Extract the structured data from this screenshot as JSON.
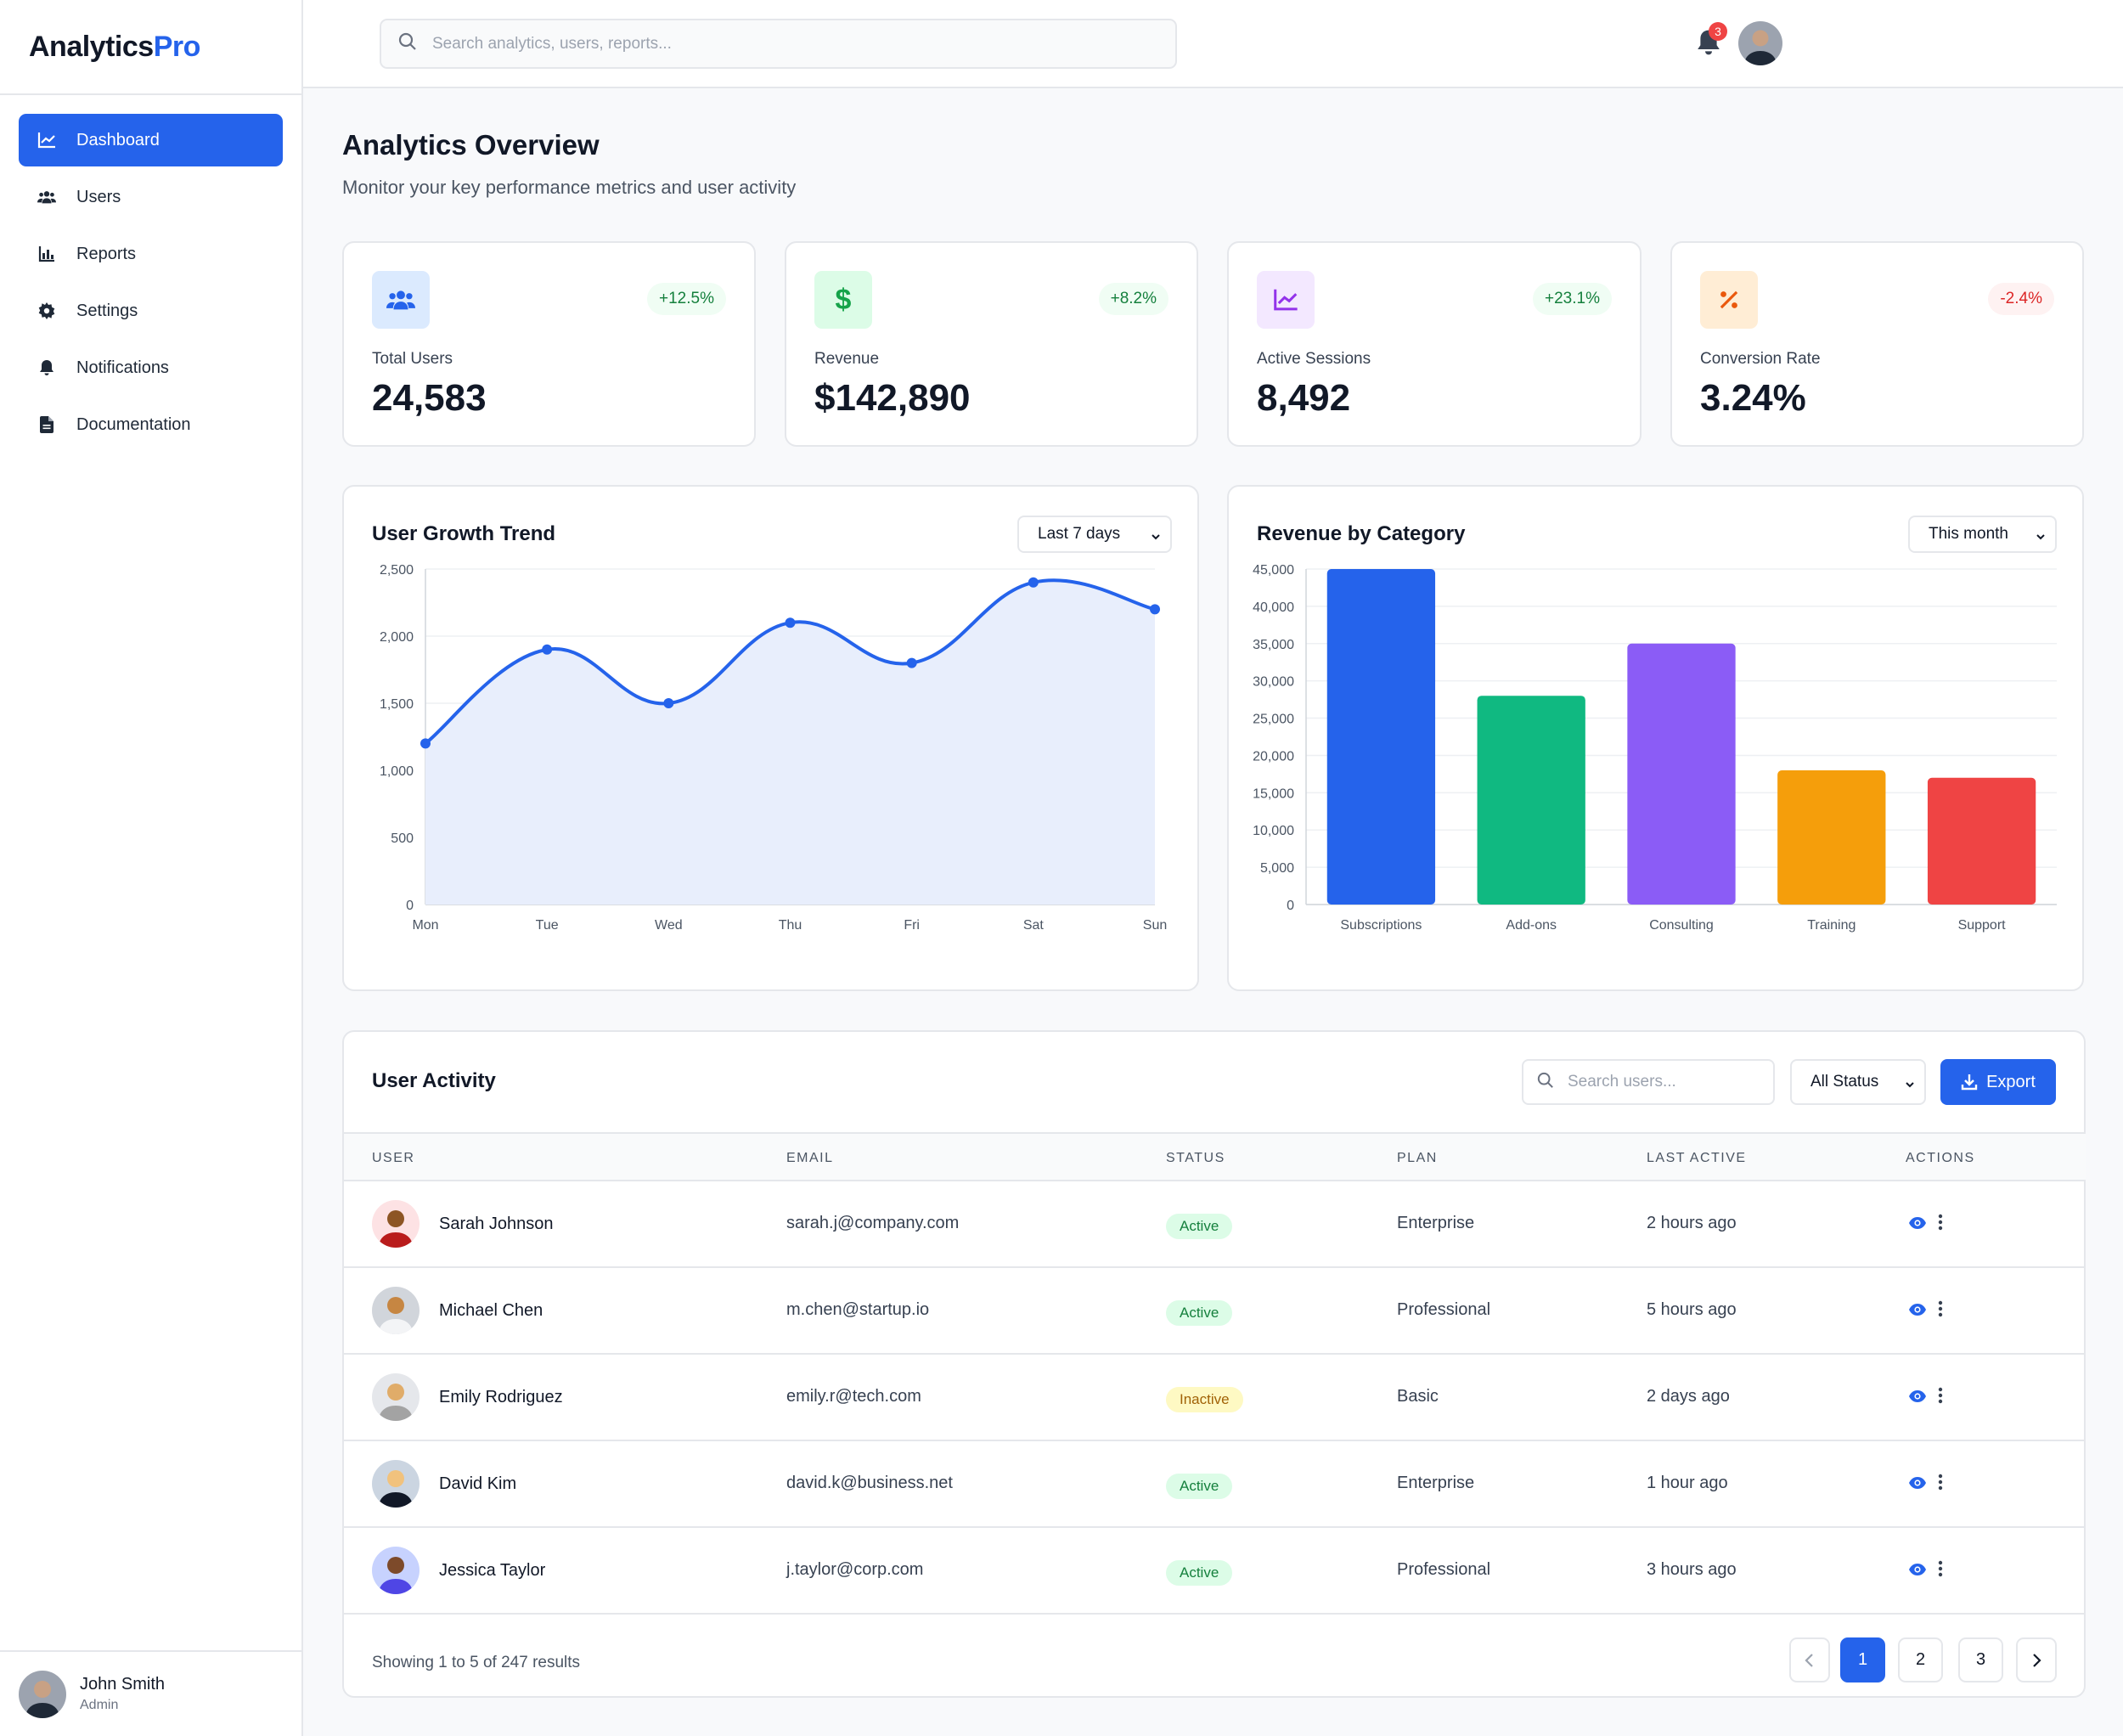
{
  "app": {
    "name_main": "Analytics",
    "name_accent": "Pro"
  },
  "search": {
    "placeholder": "Search analytics, users, reports..."
  },
  "notifications": {
    "count": "3"
  },
  "sidebar": {
    "items": [
      {
        "label": "Dashboard",
        "icon": "chart-line-icon",
        "active": true
      },
      {
        "label": "Users",
        "icon": "users-icon"
      },
      {
        "label": "Reports",
        "icon": "bar-chart-icon"
      },
      {
        "label": "Settings",
        "icon": "gear-icon"
      },
      {
        "label": "Notifications",
        "icon": "bell-icon"
      },
      {
        "label": "Documentation",
        "icon": "document-icon"
      }
    ],
    "user": {
      "name": "John Smith",
      "role": "Admin"
    }
  },
  "page": {
    "title": "Analytics Overview",
    "subtitle": "Monitor your key performance metrics and user activity"
  },
  "stats": [
    {
      "label": "Total Users",
      "value": "24,583",
      "change": "+12.5%",
      "trend": "up",
      "icon": "users-icon",
      "icon_color": "#2563eb",
      "icon_bg": "#dbeafe"
    },
    {
      "label": "Revenue",
      "value": "$142,890",
      "change": "+8.2%",
      "trend": "up",
      "icon": "dollar-icon",
      "icon_color": "#16a34a",
      "icon_bg": "#dcfce7"
    },
    {
      "label": "Active Sessions",
      "value": "8,492",
      "change": "+23.1%",
      "trend": "up",
      "icon": "chart-line-icon",
      "icon_color": "#9333ea",
      "icon_bg": "#f3e8ff"
    },
    {
      "label": "Conversion Rate",
      "value": "3.24%",
      "change": "-2.4%",
      "trend": "down",
      "icon": "percent-icon",
      "icon_color": "#ea580c",
      "icon_bg": "#ffedd5"
    }
  ],
  "chart_data": [
    {
      "type": "area",
      "title": "User Growth Trend",
      "filter": "Last 7 days",
      "x": [
        "Mon",
        "Tue",
        "Wed",
        "Thu",
        "Fri",
        "Sat",
        "Sun"
      ],
      "series": [
        {
          "values": [
            1200,
            1900,
            1500,
            2100,
            1800,
            2400,
            2200
          ],
          "color": "#2563eb"
        }
      ],
      "ylim": [
        0,
        2500
      ],
      "yticks": [
        0,
        500,
        1000,
        1500,
        2000,
        2500
      ],
      "ytick_labels": [
        "0",
        "500",
        "1,000",
        "1,500",
        "2,000",
        "2,500"
      ],
      "grid": true
    },
    {
      "type": "bar",
      "title": "Revenue by Category",
      "filter": "This month",
      "categories": [
        "Subscriptions",
        "Add-ons",
        "Consulting",
        "Training",
        "Support"
      ],
      "values": [
        45000,
        28000,
        35000,
        18000,
        17000
      ],
      "colors": [
        "#2563eb",
        "#10b981",
        "#8b5cf6",
        "#f59e0b",
        "#ef4444"
      ],
      "ylim": [
        0,
        45000
      ],
      "yticks": [
        0,
        5000,
        10000,
        15000,
        20000,
        25000,
        30000,
        35000,
        40000,
        45000
      ],
      "ytick_labels": [
        "0",
        "5,000",
        "10,000",
        "15,000",
        "20,000",
        "25,000",
        "30,000",
        "35,000",
        "40,000",
        "45,000"
      ],
      "grid": true
    }
  ],
  "activity": {
    "title": "User Activity",
    "search_placeholder": "Search users...",
    "status_filter": "All Status",
    "export_label": "Export",
    "columns": [
      "USER",
      "EMAIL",
      "STATUS",
      "PLAN",
      "LAST ACTIVE",
      "ACTIONS"
    ],
    "rows": [
      {
        "name": "Sarah Johnson",
        "email": "sarah.j@company.com",
        "status": "Active",
        "plan": "Enterprise",
        "last_active": "2 hours ago"
      },
      {
        "name": "Michael Chen",
        "email": "m.chen@startup.io",
        "status": "Active",
        "plan": "Professional",
        "last_active": "5 hours ago"
      },
      {
        "name": "Emily Rodriguez",
        "email": "emily.r@tech.com",
        "status": "Inactive",
        "plan": "Basic",
        "last_active": "2 days ago"
      },
      {
        "name": "David Kim",
        "email": "david.k@business.net",
        "status": "Active",
        "plan": "Enterprise",
        "last_active": "1 hour ago"
      },
      {
        "name": "Jessica Taylor",
        "email": "j.taylor@corp.com",
        "status": "Active",
        "plan": "Professional",
        "last_active": "3 hours ago"
      }
    ],
    "showing": "Showing 1 to 5 of 247 results",
    "pages": [
      "1",
      "2",
      "3"
    ],
    "current_page": "1"
  }
}
